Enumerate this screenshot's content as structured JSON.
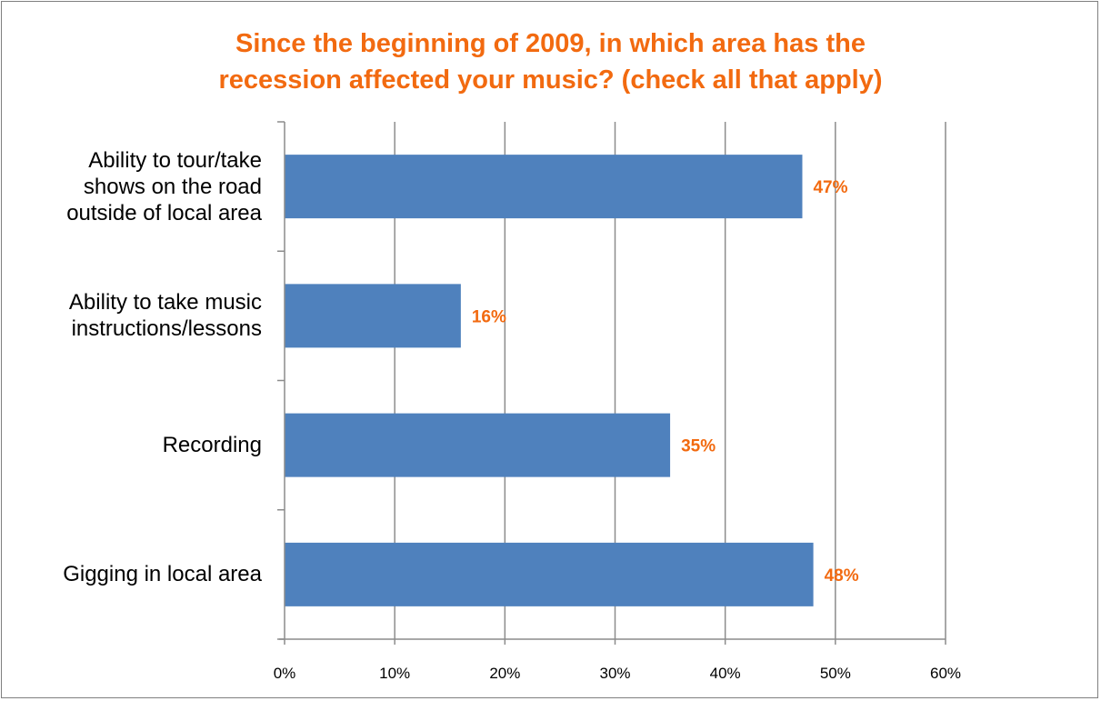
{
  "chart_data": {
    "type": "bar",
    "orientation": "horizontal",
    "title_lines": [
      "Since the beginning of 2009, in which area has the",
      "recession affected your music? (check all that apply)"
    ],
    "categories": [
      [
        "Ability to tour/take",
        "shows on the road",
        "outside of local area"
      ],
      [
        "Ability to take music",
        "instructions/lessons"
      ],
      [
        "Recording"
      ],
      [
        "Gigging in local area"
      ]
    ],
    "values": [
      47,
      16,
      35,
      48
    ],
    "data_labels": [
      "47%",
      "16%",
      "35%",
      "48%"
    ],
    "xlim": [
      0,
      60
    ],
    "xticks": [
      0,
      10,
      20,
      30,
      40,
      50,
      60
    ],
    "xtick_labels": [
      "0%",
      "10%",
      "20%",
      "30%",
      "40%",
      "50%",
      "60%"
    ],
    "xlabel": "",
    "ylabel": "",
    "grid": true,
    "legend": "none",
    "colors": {
      "bar": "#4f81bd",
      "title": "#f26a10",
      "data_label": "#f26a10",
      "grid": "#8c8c8c"
    }
  }
}
